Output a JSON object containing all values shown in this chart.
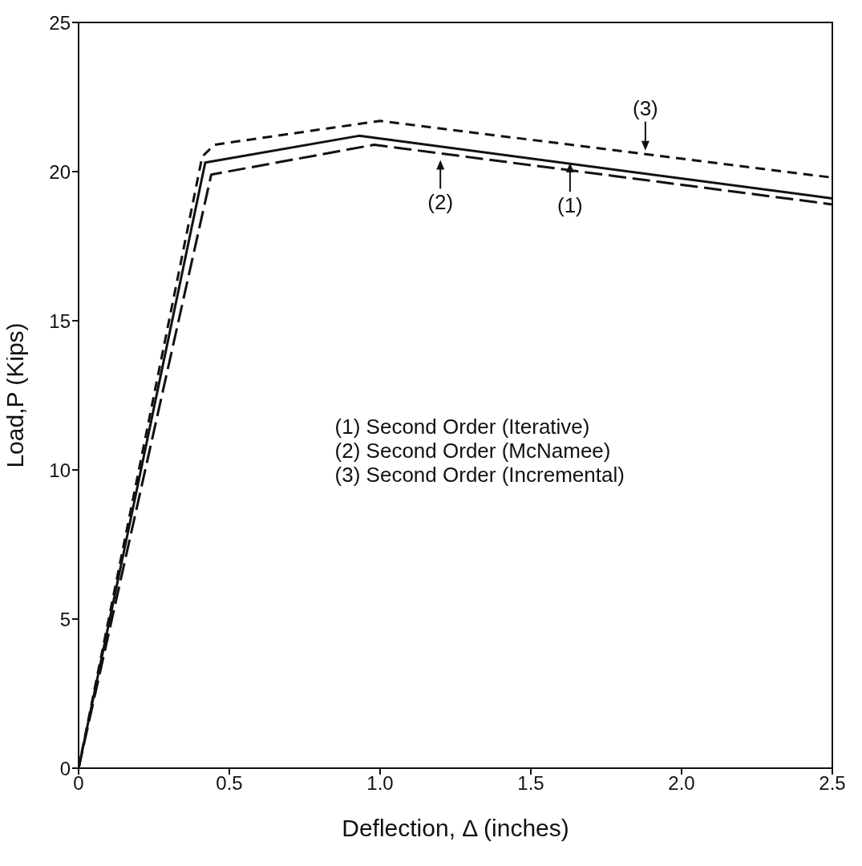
{
  "chart_data": {
    "type": "line",
    "xlabel": "Deflection, Δ (inches)",
    "ylabel": "Load,P (Kips)",
    "xlim": [
      0,
      2.5
    ],
    "ylim": [
      0,
      25
    ],
    "xticks": [
      0,
      0.5,
      {
        "value": 1,
        "label": "1.0"
      },
      1.5,
      {
        "value": 2,
        "label": "2.0"
      },
      2.5
    ],
    "yticks": [
      0,
      5,
      10,
      15,
      20,
      25
    ],
    "marker": "none",
    "series": [
      {
        "color": "#111111",
        "line_style": "solid",
        "x": [
          0,
          0.42,
          0.93,
          2.5
        ],
        "values": [
          0,
          20.3,
          21.2,
          19.1
        ]
      },
      {
        "color": "#111111",
        "line_style": "dashed",
        "x": [
          0,
          0.44,
          0.98,
          2.5
        ],
        "values": [
          0,
          19.9,
          20.9,
          18.9
        ]
      },
      {
        "color": "#111111",
        "line_style": "dotted",
        "x": [
          0,
          0.41,
          0.45,
          1.0,
          2.5
        ],
        "values": [
          0,
          20.5,
          20.9,
          21.7,
          19.8
        ]
      }
    ],
    "annotations": [
      {
        "text": "(1)",
        "x": 1.63,
        "y": 20.4
      },
      {
        "text": "(2)",
        "x": 1.2,
        "y": 20.5
      },
      {
        "text": "(3)",
        "x": 1.88,
        "y": 20.6
      },
      "(1)  Second Order (Iterative)",
      "(2)  Second Order (McNamee)",
      "(3)  Second Order (Incremental)"
    ]
  }
}
